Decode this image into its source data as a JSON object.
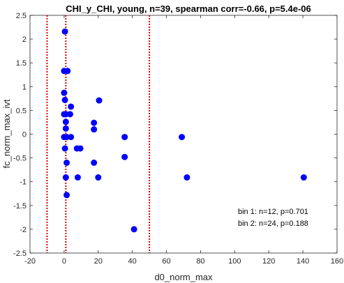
{
  "chart_data": {
    "type": "scatter",
    "title": "CHI_y_CHI, young, n=39, spearman corr=-0.66, p=5.4e-06",
    "xlabel": "d0_norm_max",
    "ylabel": "fc_norm_max_ivt",
    "xlim": [
      -20,
      160
    ],
    "ylim": [
      -2.5,
      2.5
    ],
    "xticks": [
      -20,
      0,
      20,
      40,
      60,
      80,
      100,
      120,
      140,
      160
    ],
    "yticks": [
      -2.5,
      -2,
      -1.5,
      -1,
      -0.5,
      0,
      0.5,
      1,
      1.5,
      2,
      2.5
    ],
    "grid": false,
    "marker_color": "#0000ff",
    "vline_color": "#dd0000",
    "vlines": [
      -10,
      1,
      50
    ],
    "points": [
      {
        "x": 0.5,
        "y": 2.16
      },
      {
        "x": 0.0,
        "y": 1.33
      },
      {
        "x": 2.0,
        "y": 1.33
      },
      {
        "x": 0.0,
        "y": 0.87
      },
      {
        "x": 0.5,
        "y": 0.72
      },
      {
        "x": 20.5,
        "y": 0.71
      },
      {
        "x": 4.0,
        "y": 0.58
      },
      {
        "x": 0.0,
        "y": 0.42
      },
      {
        "x": 1.0,
        "y": 0.42
      },
      {
        "x": 3.5,
        "y": 0.42
      },
      {
        "x": 1.0,
        "y": 0.26
      },
      {
        "x": 17.5,
        "y": 0.24
      },
      {
        "x": 1.0,
        "y": 0.12
      },
      {
        "x": 17.5,
        "y": 0.1
      },
      {
        "x": 0.0,
        "y": -0.06
      },
      {
        "x": 1.5,
        "y": -0.06
      },
      {
        "x": 4.0,
        "y": -0.06
      },
      {
        "x": 35.5,
        "y": -0.06
      },
      {
        "x": 69.0,
        "y": -0.06
      },
      {
        "x": 0.5,
        "y": -0.3
      },
      {
        "x": 7.5,
        "y": -0.3
      },
      {
        "x": 9.5,
        "y": -0.3
      },
      {
        "x": 35.5,
        "y": -0.48
      },
      {
        "x": 1.5,
        "y": -0.6
      },
      {
        "x": 17.5,
        "y": -0.6
      },
      {
        "x": 1.0,
        "y": -0.91
      },
      {
        "x": 8.0,
        "y": -0.91
      },
      {
        "x": 20.0,
        "y": -0.91
      },
      {
        "x": 72.0,
        "y": -0.91
      },
      {
        "x": 140.5,
        "y": -0.91
      },
      {
        "x": 1.5,
        "y": -1.28
      },
      {
        "x": 41.0,
        "y": -2.0
      }
    ],
    "annotations": [
      "bin 1: n=12, p=0.701",
      "bin 2: n=24, p=0.188"
    ]
  }
}
